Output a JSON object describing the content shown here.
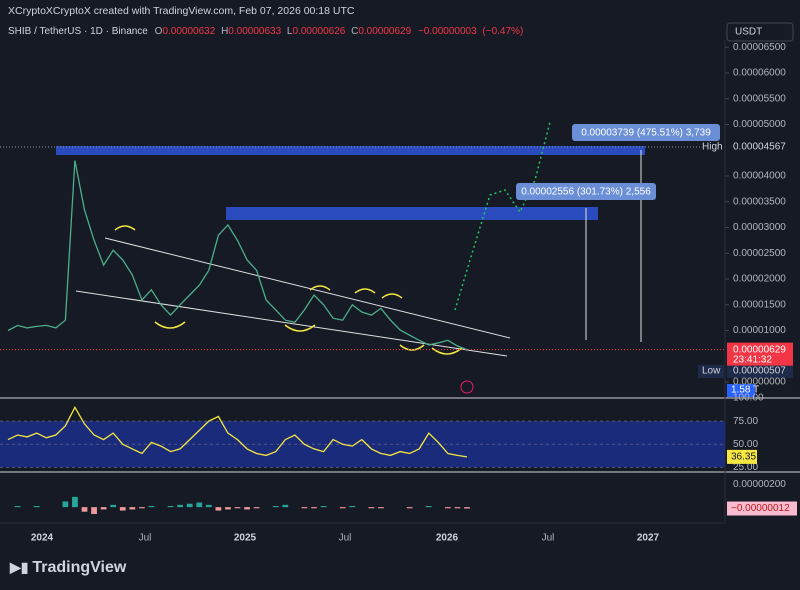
{
  "header": {
    "author_line": "XCryptoXCryptoX created with TradingView.com, Feb 07, 2026 00:18 UTC"
  },
  "chart_data": {
    "type": "line",
    "symbol": "SHIB / TetherUS · 1D · Binance",
    "ohlc": [
      {
        "key": "O",
        "value": 6.32e-06,
        "label": "0.00000632"
      },
      {
        "key": "H",
        "value": 6.33e-06,
        "label": "0.00000633"
      },
      {
        "key": "L",
        "value": 6.26e-06,
        "label": "0.00000626"
      },
      {
        "key": "C",
        "value": 6.29e-06,
        "label": "0.00000629"
      }
    ],
    "change": {
      "value": -3e-08,
      "label": "−0.00000003"
    },
    "change_pct": {
      "value": -0.47,
      "label": "(−0.47%)"
    },
    "currency": "USDT",
    "color": "#4caf8a",
    "ylim": [
      -3.1e-06,
      6.64e-05
    ],
    "yticks": [
      {
        "value": 6.5e-05,
        "label": "0.00006500"
      },
      {
        "value": 6e-05,
        "label": "0.00006000"
      },
      {
        "value": 5.5e-05,
        "label": "0.00005500"
      },
      {
        "value": 5e-05,
        "label": "0.00005000"
      },
      {
        "value": 4e-05,
        "label": "0.00004000"
      },
      {
        "value": 3.5e-05,
        "label": "0.00003500"
      },
      {
        "value": 3e-05,
        "label": "0.00003000"
      },
      {
        "value": 2.5e-05,
        "label": "0.00002500"
      },
      {
        "value": 2e-05,
        "label": "0.00002000"
      },
      {
        "value": 1.5e-05,
        "label": "0.00001500"
      },
      {
        "value": 1e-05,
        "label": "0.00001000"
      },
      {
        "value": 0,
        "label": "0.00000000"
      }
    ],
    "x_labels": [
      "2024",
      "Jul",
      "2025",
      "Jul",
      "2026",
      "Jul",
      "2027"
    ],
    "values": [
      1e-05,
      1.1e-05,
      1.05e-05,
      1.08e-05,
      1.1e-05,
      1.05e-05,
      1.2e-05,
      4.3e-05,
      3.34e-05,
      2.75e-05,
      2.27e-05,
      2.56e-05,
      2.37e-05,
      2.08e-05,
      1.59e-05,
      1.79e-05,
      1.5e-05,
      1.3e-05,
      1.5e-05,
      1.69e-05,
      1.88e-05,
      2.17e-05,
      2.85e-05,
      3.05e-05,
      2.75e-05,
      2.37e-05,
      2.17e-05,
      1.59e-05,
      1.4e-05,
      1.2e-05,
      1.16e-05,
      1.4e-05,
      1.69e-05,
      1.5e-05,
      1.24e-05,
      1.2e-05,
      1.5e-05,
      1.36e-05,
      1.3e-05,
      1.43e-05,
      1.2e-05,
      1.01e-05,
      9.1e-06,
      8.1e-06,
      7.2e-06,
      7.6e-06,
      8.1e-06,
      7e-06,
      6.29e-06
    ],
    "last_price": {
      "value": 6.29e-06,
      "label": "0.00000629"
    },
    "countdown": "23:41:32",
    "high": {
      "name": "High",
      "value": 4.567e-05,
      "label": "0.00004567"
    },
    "low": {
      "name": "Low",
      "value": 5.07e-06,
      "label": "0.00000507"
    },
    "volume_label": "1.58 T",
    "annotations": [
      "0.00003739 (475.51%) 3,739",
      "0.00002556 (301.73%) 2,556"
    ],
    "rsi": {
      "color": "#f5e642",
      "ylim": [
        20,
        100
      ],
      "yticks": [
        {
          "value": 100,
          "label": "100.00"
        },
        {
          "value": 75,
          "label": "75.00"
        },
        {
          "value": 50,
          "label": "50.00"
        },
        {
          "value": 25,
          "label": "25.00"
        }
      ],
      "last": 36.35,
      "values": [
        55,
        60,
        58,
        62,
        57,
        60,
        70,
        90,
        72,
        60,
        55,
        62,
        50,
        45,
        40,
        52,
        48,
        42,
        45,
        55,
        65,
        75,
        80,
        62,
        55,
        45,
        40,
        38,
        42,
        55,
        60,
        50,
        45,
        42,
        55,
        50,
        48,
        55,
        45,
        40,
        38,
        42,
        40,
        45,
        62,
        52,
        40,
        38,
        36.35
      ]
    },
    "macd": {
      "ylim": [
        -1.3e-06,
        2.9e-06
      ],
      "yticks": [
        {
          "value": 2e-06,
          "label": "0.00000200"
        }
      ],
      "last": {
        "value": -1.2e-07,
        "label": "−0.00000012"
      },
      "values": [
        0,
        1e-07,
        0,
        1e-07,
        0,
        0,
        5e-07,
        9e-07,
        -4e-07,
        -6e-07,
        -2e-07,
        2e-07,
        -3e-07,
        -2e-07,
        -1e-07,
        1e-07,
        0,
        1e-07,
        2e-07,
        3e-07,
        4e-07,
        2e-07,
        -3e-07,
        -2e-07,
        -1e-07,
        -2e-07,
        -1e-07,
        0,
        1e-07,
        2e-07,
        0,
        -1e-07,
        -1e-07,
        1e-07,
        0,
        -1e-07,
        1e-07,
        0,
        -1e-07,
        -1e-07,
        0,
        0,
        -1e-07,
        0,
        1e-07,
        0,
        -1e-07,
        -1e-07,
        -1.2e-07
      ]
    }
  },
  "footer": {
    "brand": "TradingView"
  }
}
